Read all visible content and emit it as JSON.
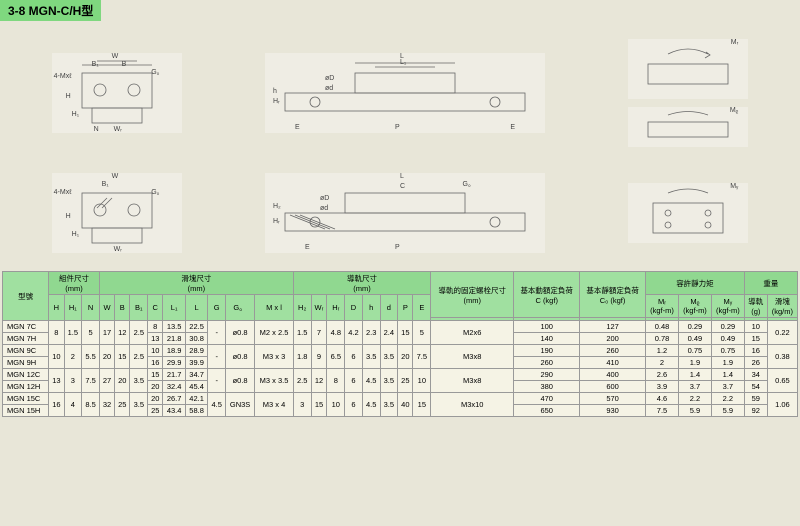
{
  "title": "3-8 MGN-C/H型",
  "diagram_labels": {
    "cross1": {
      "W": "W",
      "B": "B",
      "B1": "B₁",
      "G": "G。",
      "H": "H",
      "H1": "H₁",
      "N": "N",
      "WR": "Wᵣ",
      "holes": "4-Mxℓ"
    },
    "side1": {
      "L": "L",
      "L1": "L₁",
      "C": "C",
      "oD": "øD",
      "od": "ød",
      "h": "h",
      "P": "P",
      "E": "E",
      "HR": "Hᵣ",
      "H2": "H₂"
    },
    "top1": {
      "MR": "Mᵣ",
      "MP": "Mᵨ",
      "MY": "Mᵧ"
    }
  },
  "table": {
    "headers": {
      "model": "型號",
      "assembly": "組件尺寸",
      "block": "滑塊尺寸",
      "rail": "導軌尺寸",
      "bolt": "導軌的固定螺栓尺寸",
      "dynamic": "基本動額定負荷",
      "static": "基本靜額定負荷",
      "moment": "容許靜力矩",
      "weight": "重量",
      "unit_mm": "(mm)",
      "unit_kgf": "C (kgf)",
      "unit_kgf0": "C₀ (kgf)",
      "MR": "Mᵣ",
      "MP": "Mᵨ",
      "MY": "Mᵧ",
      "kgfm": "(kgf-m)",
      "rail_w": "導軌",
      "block_w": "滑塊",
      "g": "(g)",
      "kgm": "(kg/m)"
    },
    "cols": [
      "H",
      "H₁",
      "N",
      "W",
      "B",
      "B₁",
      "C",
      "L₁",
      "L",
      "G",
      "G。",
      "M x l",
      "H₂",
      "Wᵣ",
      "Hᵣ",
      "D",
      "h",
      "d",
      "P",
      "E"
    ],
    "rows": [
      {
        "model": "MGN 7C",
        "vals": [
          "8",
          "1.5",
          "5",
          "17",
          "12",
          "2.5",
          "8",
          "13.5",
          "22.5",
          "-",
          "ø0.8",
          "M2 x 2.5",
          "1.5",
          "7",
          "4.8",
          "4.2",
          "2.3",
          "2.4",
          "15",
          "5"
        ],
        "bolt": "M2x6",
        "C": "100",
        "C0": "127",
        "MR": "0.48",
        "MP": "0.29",
        "MY": "0.29",
        "railW": "10",
        "blockW": "0.22",
        "rowspan": false
      },
      {
        "model": "MGN 7H",
        "vals": [
          "",
          "",
          "",
          "",
          "",
          "",
          "13",
          "21.8",
          "30.8",
          "",
          "",
          "",
          "",
          "",
          "",
          "",
          "",
          "",
          "",
          ""
        ],
        "bolt": "",
        "C": "140",
        "C0": "200",
        "MR": "0.78",
        "MP": "0.49",
        "MY": "0.49",
        "railW": "15",
        "blockW": "",
        "rowspan": true
      },
      {
        "model": "MGN 9C",
        "vals": [
          "10",
          "2",
          "5.5",
          "20",
          "15",
          "2.5",
          "10",
          "18.9",
          "28.9",
          "-",
          "ø0.8",
          "M3 x 3",
          "1.8",
          "9",
          "6.5",
          "6",
          "3.5",
          "3.5",
          "20",
          "7.5"
        ],
        "bolt": "M3x8",
        "C": "190",
        "C0": "260",
        "MR": "1.2",
        "MP": "0.75",
        "MY": "0.75",
        "railW": "16",
        "blockW": "0.38",
        "rowspan": false
      },
      {
        "model": "MGN 9H",
        "vals": [
          "",
          "",
          "",
          "",
          "",
          "",
          "16",
          "29.9",
          "39.9",
          "",
          "",
          "",
          "",
          "",
          "",
          "",
          "",
          "",
          "",
          ""
        ],
        "bolt": "",
        "C": "260",
        "C0": "410",
        "MR": "2",
        "MP": "1.9",
        "MY": "1.9",
        "railW": "26",
        "blockW": "",
        "rowspan": true
      },
      {
        "model": "MGN 12C",
        "vals": [
          "13",
          "3",
          "7.5",
          "27",
          "20",
          "3.5",
          "15",
          "21.7",
          "34.7",
          "-",
          "ø0.8",
          "M3 x 3.5",
          "2.5",
          "12",
          "8",
          "6",
          "4.5",
          "3.5",
          "25",
          "10"
        ],
        "bolt": "M3x8",
        "C": "290",
        "C0": "400",
        "MR": "2.6",
        "MP": "1.4",
        "MY": "1.4",
        "railW": "34",
        "blockW": "0.65",
        "rowspan": false
      },
      {
        "model": "MGN 12H",
        "vals": [
          "",
          "",
          "",
          "",
          "",
          "",
          "20",
          "32.4",
          "45.4",
          "",
          "",
          "",
          "",
          "",
          "",
          "",
          "",
          "",
          "",
          ""
        ],
        "bolt": "",
        "C": "380",
        "C0": "600",
        "MR": "3.9",
        "MP": "3.7",
        "MY": "3.7",
        "railW": "54",
        "blockW": "",
        "rowspan": true
      },
      {
        "model": "MGN 15C",
        "vals": [
          "16",
          "4",
          "8.5",
          "32",
          "25",
          "3.5",
          "20",
          "26.7",
          "42.1",
          "4.5",
          "GN3S",
          "M3 x 4",
          "3",
          "15",
          "10",
          "6",
          "4.5",
          "3.5",
          "40",
          "15"
        ],
        "bolt": "M3x10",
        "C": "470",
        "C0": "570",
        "MR": "4.6",
        "MP": "2.2",
        "MY": "2.2",
        "railW": "59",
        "blockW": "1.06",
        "rowspan": false
      },
      {
        "model": "MGN 15H",
        "vals": [
          "",
          "",
          "",
          "",
          "",
          "",
          "25",
          "43.4",
          "58.8",
          "",
          "",
          "",
          "",
          "",
          "",
          "",
          "",
          "",
          "",
          ""
        ],
        "bolt": "",
        "C": "650",
        "C0": "930",
        "MR": "7.5",
        "MP": "5.9",
        "MY": "5.9",
        "railW": "92",
        "blockW": "",
        "rowspan": true
      }
    ]
  },
  "colors": {
    "bg": "#e8e6d8",
    "title_bg": "#7fd87f",
    "th_bg": "#a0e0a0",
    "border": "#999999"
  }
}
